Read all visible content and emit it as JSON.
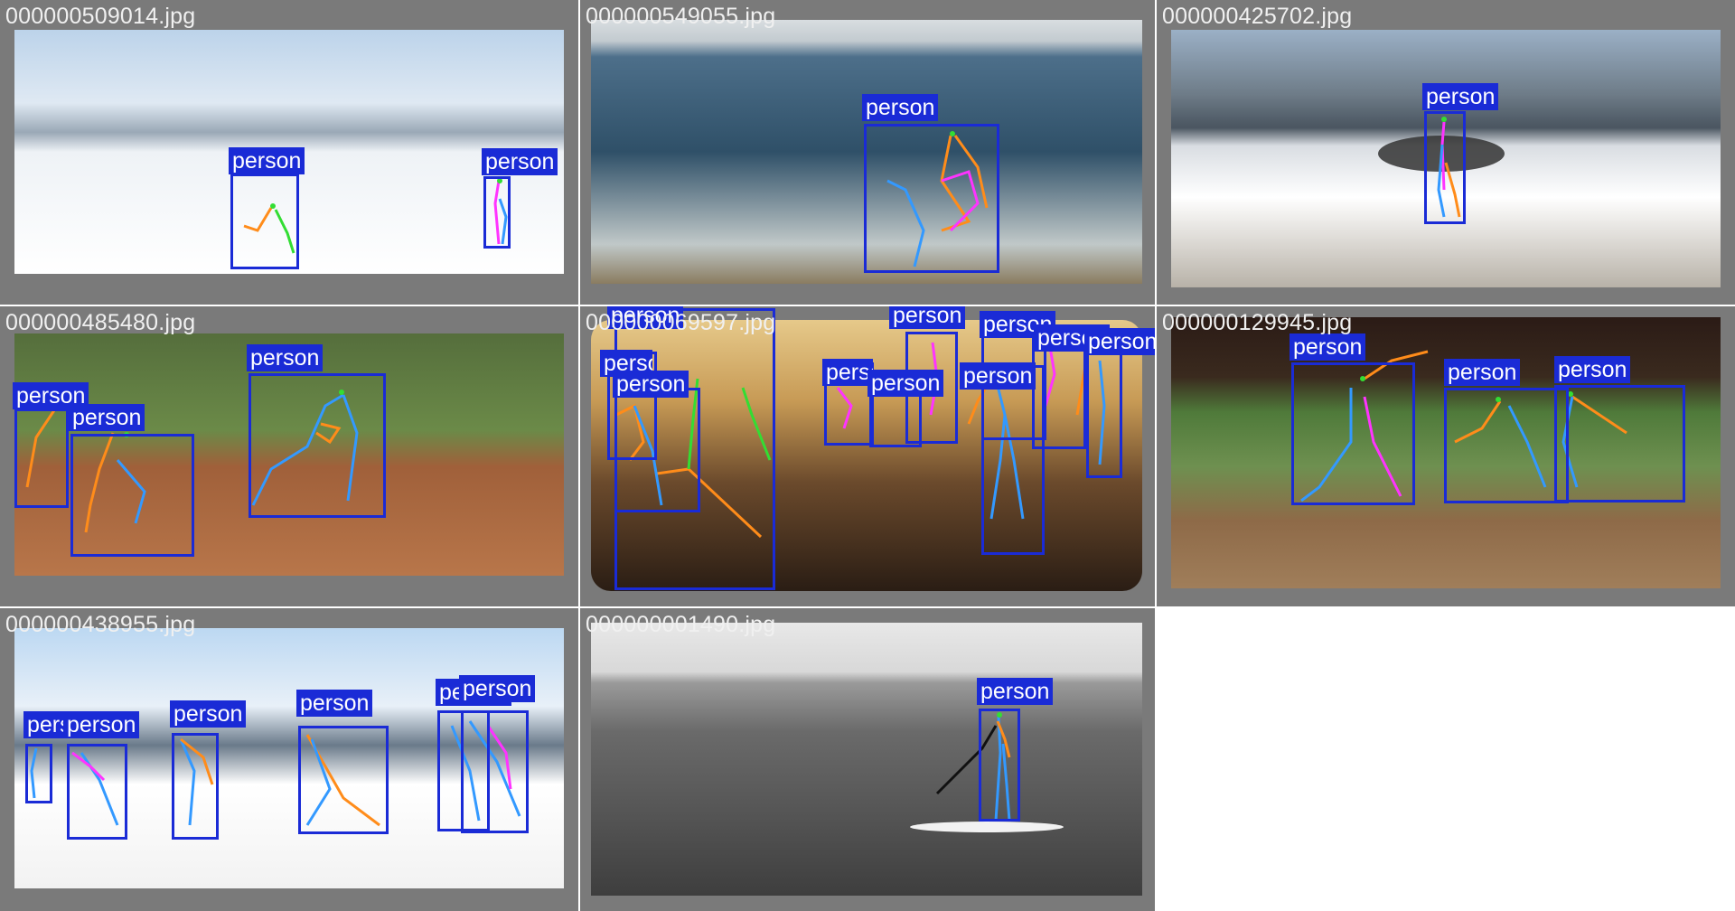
{
  "tiles": [
    {
      "filename": "000000509014.jpg",
      "labels": [
        "person",
        "person"
      ]
    },
    {
      "filename": "000000549055.jpg",
      "labels": [
        "person"
      ]
    },
    {
      "filename": "000000425702.jpg",
      "labels": [
        "person"
      ]
    },
    {
      "filename": "000000485480.jpg",
      "labels": [
        "person",
        "person",
        "person"
      ]
    },
    {
      "filename": "000000069597.jpg",
      "labels": [
        "person",
        "person",
        "person",
        "person",
        "person",
        "person",
        "person",
        "person",
        "person",
        "person"
      ]
    },
    {
      "filename": "000000129945.jpg",
      "labels": [
        "person",
        "person",
        "person"
      ]
    },
    {
      "filename": "000000438955.jpg",
      "labels": [
        "person",
        "person",
        "person",
        "person",
        "person",
        "person"
      ]
    },
    {
      "filename": "000000001490.jpg",
      "labels": [
        "person"
      ]
    }
  ],
  "overlay_colors": {
    "box": "#1a2bd6",
    "limb_left": "#ff8c1a",
    "limb_right": "#3399ff",
    "torso": "#ff33ff",
    "head": "#33dd33"
  }
}
